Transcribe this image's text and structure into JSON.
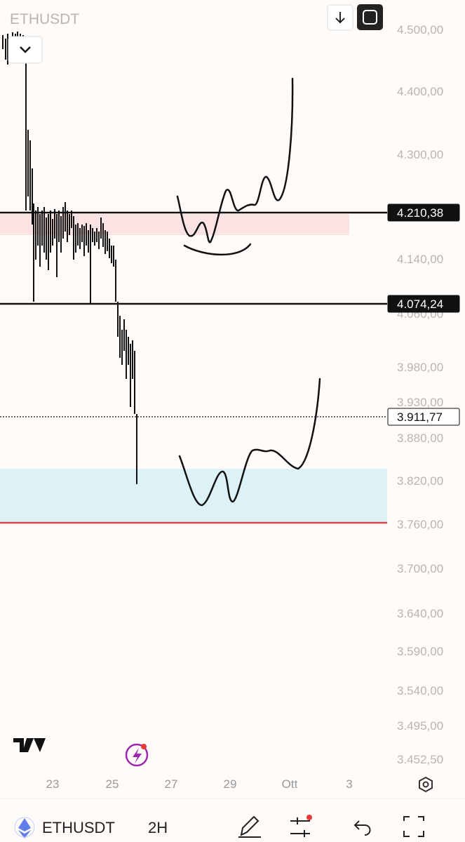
{
  "header": {
    "symbol": "ETHUSDT"
  },
  "price_axis": {
    "labels": [
      "4.500,00",
      "4.400,00",
      "4.300,00",
      "4.140,00",
      "4.060,00",
      "3.980,00",
      "3.930,00",
      "3.880,00",
      "3.820,00",
      "3.760,00",
      "3.700,00",
      "3.640,00",
      "3.590,00",
      "3.540,00",
      "3.495,00",
      "3.452,50"
    ]
  },
  "price_tags": [
    "4.210,38",
    "4.074,24",
    "3.911,77"
  ],
  "time_axis": {
    "labels": [
      "23",
      "25",
      "27",
      "29",
      "Ott",
      "3"
    ]
  },
  "bottom_bar": {
    "symbol": "ETHUSDT",
    "interval": "2H"
  }
}
